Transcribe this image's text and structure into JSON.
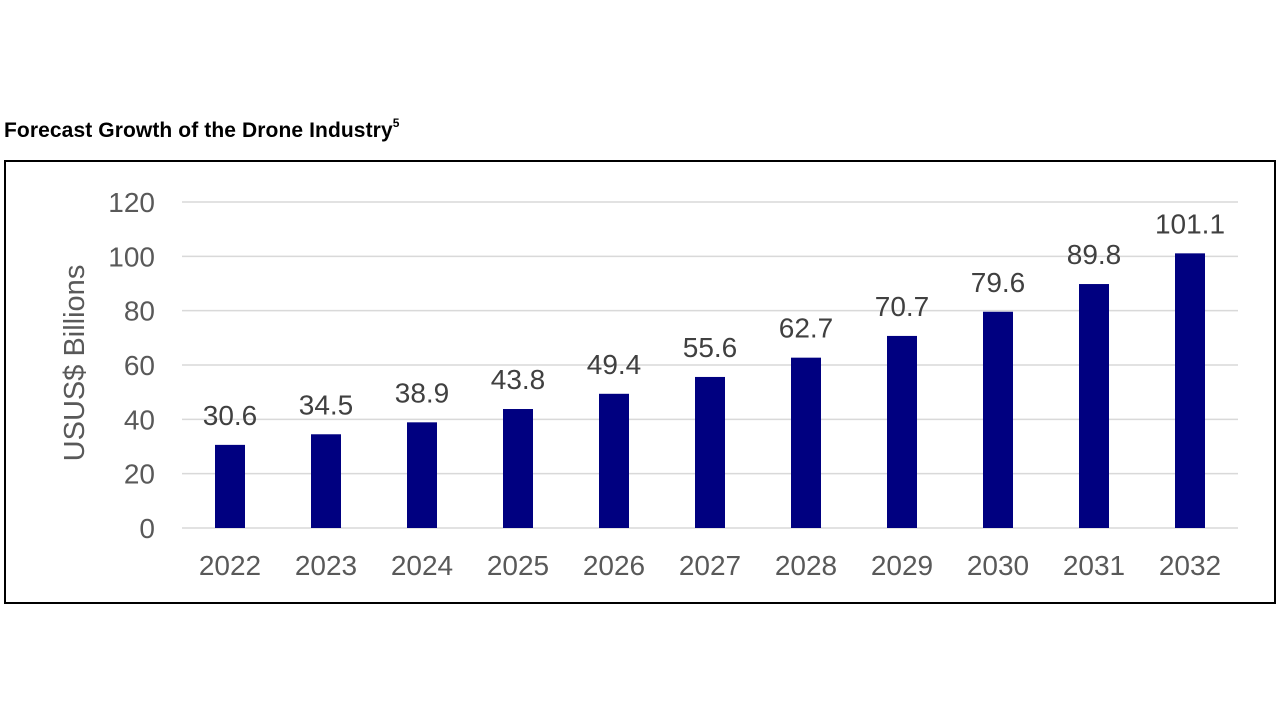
{
  "title": {
    "text": "Forecast Growth of the Drone Industry",
    "footnote": "5"
  },
  "colors": {
    "bar": "#000080",
    "grid": "#d9d9d9",
    "axis_text": "#595959",
    "label_text": "#404040"
  },
  "chart_data": {
    "type": "bar",
    "categories": [
      "2022",
      "2023",
      "2024",
      "2025",
      "2026",
      "2027",
      "2028",
      "2029",
      "2030",
      "2031",
      "2032"
    ],
    "values": [
      30.6,
      34.5,
      38.9,
      43.8,
      49.4,
      55.6,
      62.7,
      70.7,
      79.6,
      89.8,
      101.1
    ],
    "ylabel": "USUS$ Billions",
    "ylim": [
      0,
      120
    ],
    "yticks": [
      0,
      20,
      40,
      60,
      80,
      100,
      120
    ],
    "grid": true,
    "legend": "none"
  }
}
